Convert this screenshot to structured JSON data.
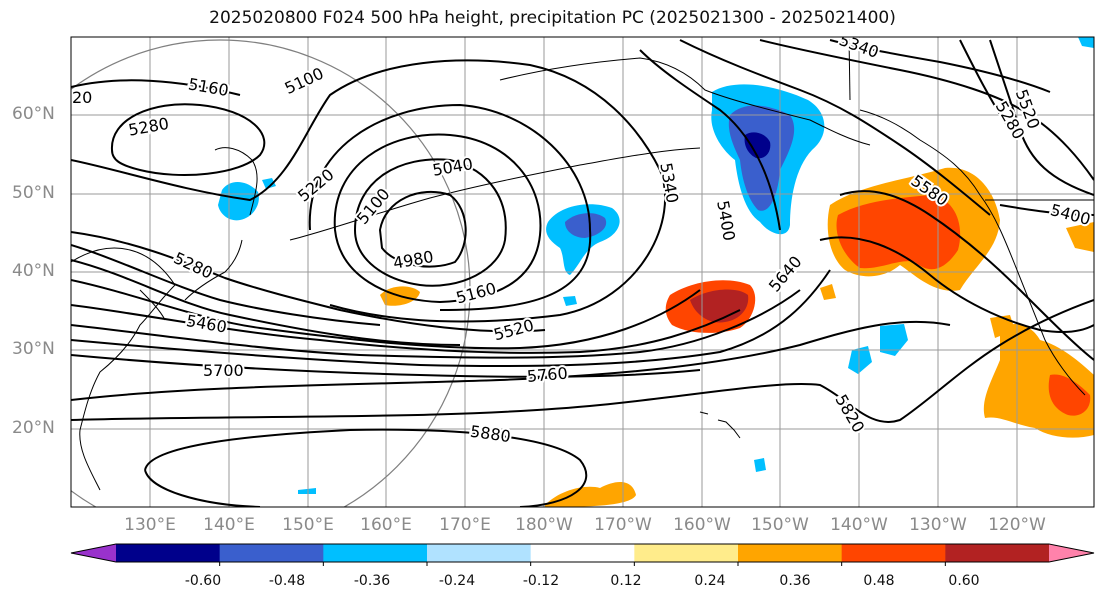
{
  "title": "2025020800 F024 500 hPa height, precipitation PC (2025021300 - 2025021400)",
  "lat_labels": [
    "60°N",
    "50°N",
    "40°N",
    "30°N",
    "20°N"
  ],
  "lon_labels": [
    "130°E",
    "140°E",
    "150°E",
    "160°E",
    "170°E",
    "180°W",
    "170°W",
    "160°W",
    "150°W",
    "140°W",
    "130°W",
    "120°W"
  ],
  "contour_labels": [
    "5100",
    "5160",
    "5280",
    "5220",
    "5040",
    "5100",
    "4980",
    "5280",
    "5160",
    "5460",
    "5520",
    "5700",
    "5760",
    "5880",
    "5340",
    "5400",
    "5640",
    "5580",
    "5400",
    "5820",
    "5340",
    "5520",
    "5280",
    "20"
  ],
  "colorbar": {
    "ticks": [
      "-0.60",
      "-0.48",
      "-0.36",
      "-0.24",
      "-0.12",
      "0.12",
      "0.24",
      "0.36",
      "0.48",
      "0.60"
    ],
    "colors": [
      "#9932cc",
      "#00008b",
      "#3a5fcd",
      "#00bfff",
      "#b0e2ff",
      "#ffffff",
      "#ffec8b",
      "#ffa500",
      "#ff4500",
      "#b22222",
      "#ff82ab"
    ]
  }
}
